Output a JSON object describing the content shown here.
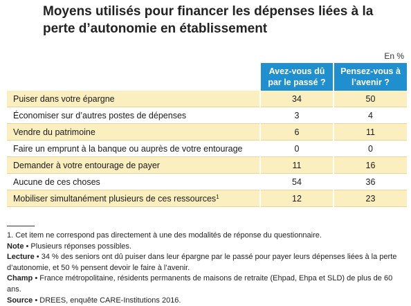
{
  "title": "Moyens utilisés pour financer les dépenses liées à la perte d’autonomie en établissement",
  "unit": "En %",
  "chart_data": {
    "type": "table",
    "title": "Moyens utilisés pour financer les dépenses liées à la perte d’autonomie en établissement",
    "columns": [
      "Avez-vous dû par le passé ?",
      "Pensez-vous à l’avenir ?"
    ],
    "rows": [
      {
        "label": "Puiser dans votre épargne",
        "sup": "",
        "values": [
          "34",
          "50"
        ]
      },
      {
        "label": "Économiser sur d’autres postes de dépenses",
        "sup": "",
        "values": [
          "3",
          "4"
        ]
      },
      {
        "label": "Vendre du patrimoine",
        "sup": "",
        "values": [
          "6",
          "11"
        ]
      },
      {
        "label": "Faire un emprunt à la banque ou auprès de votre entourage",
        "sup": "",
        "values": [
          "0",
          "0"
        ]
      },
      {
        "label": "Demander à votre entourage de payer",
        "sup": "",
        "values": [
          "11",
          "16"
        ]
      },
      {
        "label": "Aucune de ces choses",
        "sup": "",
        "values": [
          "54",
          "36"
        ]
      },
      {
        "label": "Mobiliser simultanément plusieurs de ces ressources",
        "sup": "1",
        "values": [
          "12",
          "23"
        ]
      }
    ],
    "unit": "En %"
  },
  "notes": [
    {
      "lead": "",
      "text": "1. Cet item ne correspond pas directement à une des modalités de réponse du questionnaire."
    },
    {
      "lead": "Note",
      "text": " • Plusieurs réponses possibles."
    },
    {
      "lead": "Lecture",
      "text": " • 34 % des seniors ont dû puiser dans leur épargne par le passé pour payer leurs dépenses liées à la perte d’autonomie, et 50 % pensent devoir le faire à l’avenir."
    },
    {
      "lead": "Champ",
      "text": " • France métropolitaine, résidents permanents de maisons de retraite (Ehpad, Ehpa et SLD) de plus de 60 ans."
    },
    {
      "lead": "Source",
      "text": " • DREES, enquête CARE-Institutions 2016."
    }
  ],
  "colors": {
    "header": "#1f8fd0",
    "shade": "#fbefc0",
    "rule": "#e6d49a"
  }
}
